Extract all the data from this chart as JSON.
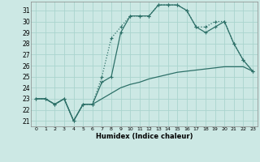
{
  "xlabel": "Humidex (Indice chaleur)",
  "bg_color": "#cce8e4",
  "grid_color": "#aad4ce",
  "line_color": "#2d7068",
  "xlim": [
    -0.5,
    23.5
  ],
  "ylim": [
    20.5,
    31.8
  ],
  "yticks": [
    21,
    22,
    23,
    24,
    25,
    26,
    27,
    28,
    29,
    30,
    31
  ],
  "xticks": [
    0,
    1,
    2,
    3,
    4,
    5,
    6,
    7,
    8,
    9,
    10,
    11,
    12,
    13,
    14,
    15,
    16,
    17,
    18,
    19,
    20,
    21,
    22,
    23
  ],
  "series1_x": [
    0,
    1,
    2,
    3,
    4,
    5,
    6,
    7,
    8,
    9,
    10,
    11,
    12,
    13,
    14,
    15,
    16,
    17,
    18,
    19,
    20,
    21,
    22,
    23
  ],
  "series1_y": [
    23.0,
    23.0,
    22.5,
    23.0,
    21.0,
    22.5,
    22.5,
    23.0,
    23.5,
    24.0,
    24.3,
    24.5,
    24.8,
    25.0,
    25.2,
    25.4,
    25.5,
    25.6,
    25.7,
    25.8,
    25.9,
    25.9,
    25.9,
    25.5
  ],
  "series2_x": [
    0,
    1,
    2,
    3,
    4,
    5,
    6,
    7,
    8,
    9,
    10,
    11,
    12,
    13,
    14,
    15,
    16,
    17,
    18,
    19,
    20,
    21,
    22,
    23
  ],
  "series2_y": [
    23.0,
    23.0,
    22.5,
    23.0,
    21.0,
    22.5,
    22.5,
    25.0,
    28.5,
    29.5,
    30.5,
    30.5,
    30.5,
    31.5,
    31.5,
    31.5,
    31.0,
    29.5,
    29.5,
    30.0,
    30.0,
    28.0,
    26.5,
    25.5
  ],
  "series3_x": [
    0,
    1,
    2,
    3,
    4,
    5,
    6,
    7,
    8,
    9,
    10,
    11,
    12,
    13,
    14,
    15,
    16,
    17,
    18,
    19,
    20,
    21,
    22,
    23
  ],
  "series3_y": [
    23.0,
    23.0,
    22.5,
    23.0,
    21.0,
    22.5,
    22.5,
    24.5,
    25.0,
    29.0,
    30.5,
    30.5,
    30.5,
    31.5,
    31.5,
    31.5,
    31.0,
    29.5,
    29.0,
    29.5,
    30.0,
    28.0,
    26.5,
    25.5
  ]
}
